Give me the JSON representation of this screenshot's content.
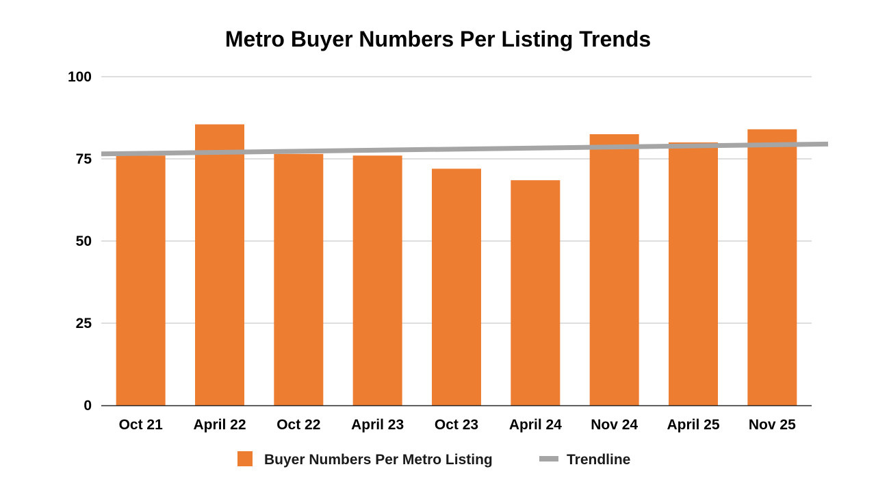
{
  "chart_data": {
    "type": "bar",
    "title": "Metro Buyer Numbers Per Listing Trends",
    "xlabel": "",
    "ylabel": "",
    "categories": [
      "Oct 21",
      "April 22",
      "Oct 22",
      "April 23",
      "Oct 23",
      "April 24",
      "Nov 24",
      "April 25",
      "Nov 25"
    ],
    "series": [
      {
        "name": "Buyer Numbers Per Metro Listing",
        "values": [
          76,
          85.5,
          76.5,
          76,
          72,
          68.5,
          82.5,
          80,
          84
        ],
        "color": "#ED7D31"
      }
    ],
    "trendline": {
      "name": "Trendline",
      "start": 76.5,
      "end": 79.5,
      "color": "#A5A5A5"
    },
    "ylim": [
      0,
      100
    ],
    "yticks": [
      0,
      25,
      50,
      75,
      100
    ],
    "grid": true,
    "legend": "bottom"
  }
}
